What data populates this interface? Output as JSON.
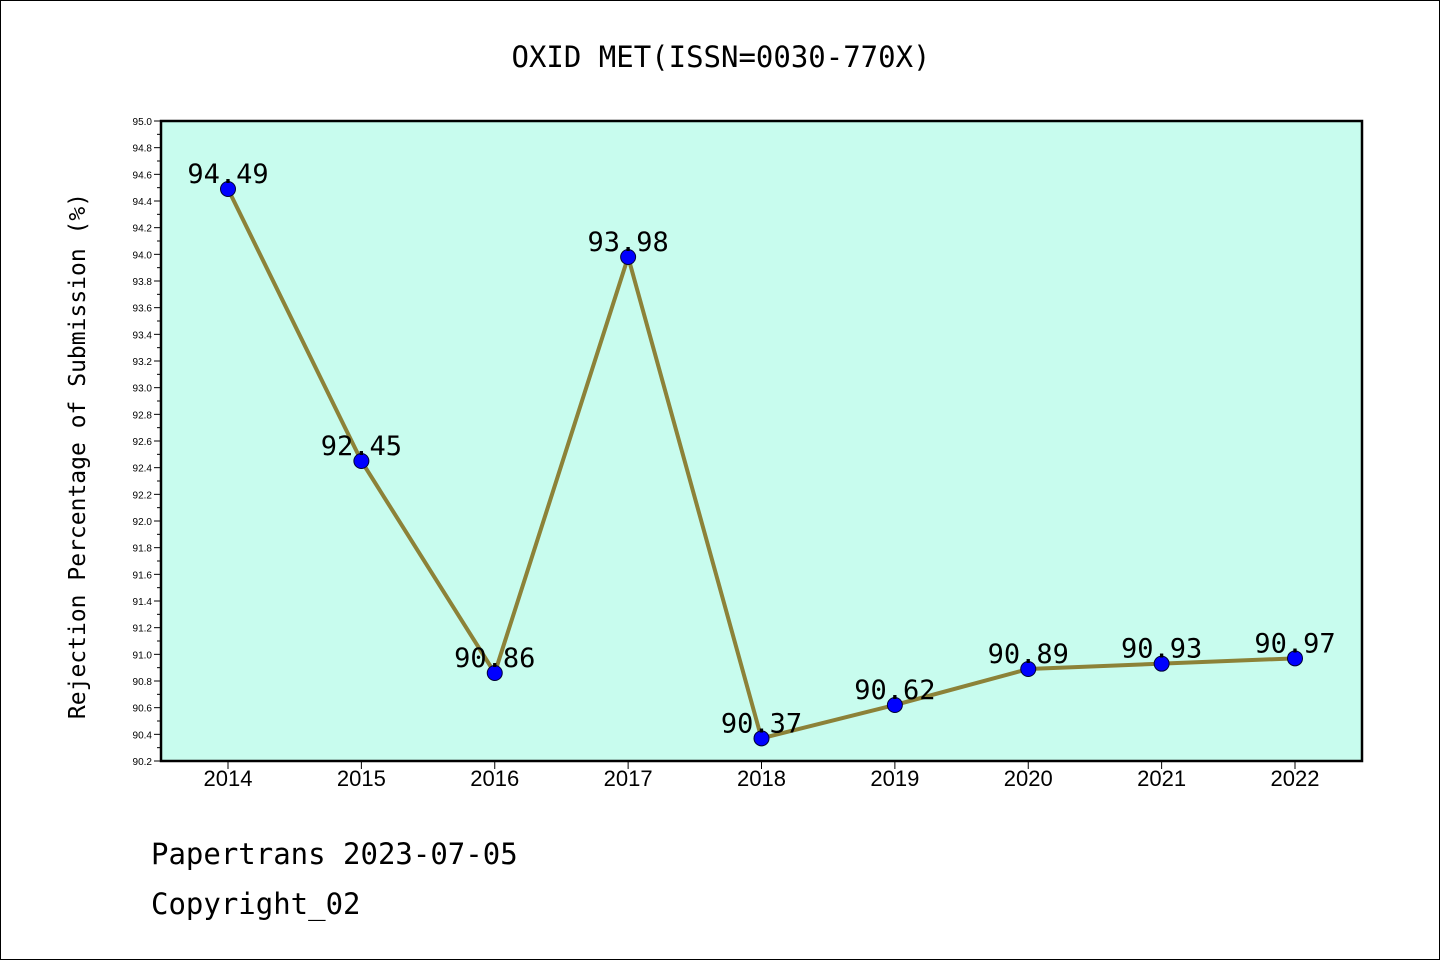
{
  "chart_data": {
    "type": "line",
    "title": "OXID MET(ISSN=0030-770X)",
    "xlabel": "",
    "ylabel": "Rejection Percentage of Submission (%)",
    "categories": [
      "2014",
      "2015",
      "2016",
      "2017",
      "2018",
      "2019",
      "2020",
      "2021",
      "2022"
    ],
    "series": [
      {
        "values": [
          94.49,
          92.45,
          90.86,
          93.98,
          90.37,
          90.62,
          90.89,
          90.93,
          90.97
        ],
        "labels": [
          "94.49",
          "92.45",
          "90.86",
          "93.98",
          "90.37",
          "90.62",
          "90.89",
          "90.93",
          "90.97"
        ]
      }
    ],
    "ylim": [
      90.2,
      95.0
    ],
    "yticks": [
      "90.2",
      "90.4",
      "90.6",
      "90.8",
      "91.0",
      "91.2",
      "91.4",
      "91.6",
      "91.8",
      "92.0",
      "92.2",
      "92.4",
      "92.6",
      "92.8",
      "93.0",
      "93.2",
      "93.4",
      "93.6",
      "93.8",
      "94.0",
      "94.2",
      "94.4",
      "94.6",
      "94.8",
      "95.0"
    ],
    "grid": false,
    "legend": "none",
    "colors": {
      "plot_background": "#c8fcee",
      "line": "#8c8238",
      "marker": "#0000ff"
    }
  },
  "footer": {
    "line1": "Papertrans 2023-07-05",
    "line2": "Copyright_02"
  }
}
